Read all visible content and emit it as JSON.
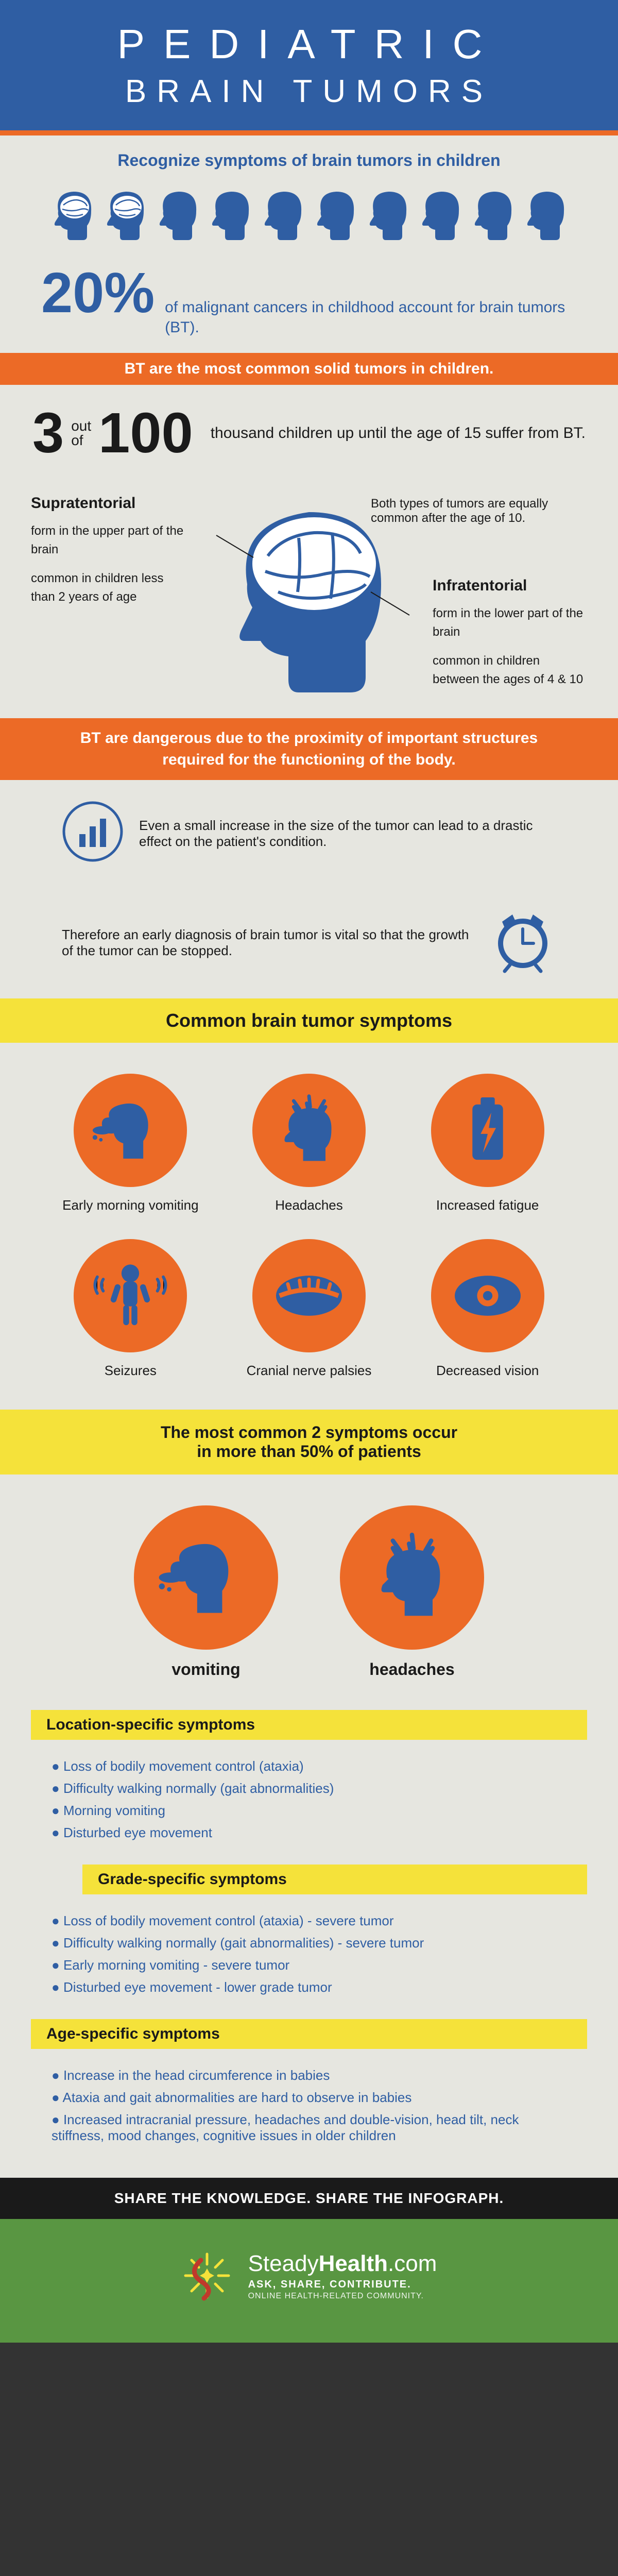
{
  "colors": {
    "blue": "#2f5ea3",
    "orange": "#ec6a26",
    "yellow": "#f5e23a",
    "bg": "#e6e6e0",
    "dark": "#1a1a1a",
    "green": "#599642"
  },
  "header": {
    "line1": "PEDIATRIC",
    "line2": "BRAIN TUMORS"
  },
  "subheader": "Recognize symptoms of brain tumors in children",
  "heads": {
    "total": 10,
    "highlighted": 2
  },
  "stat20": {
    "big": "20%",
    "text": "of malignant cancers in childhood account for brain tumors (BT)."
  },
  "bar1": "BT are the most common solid tumors in children.",
  "stat3": {
    "n1": "3",
    "of": "out\nof",
    "n2": "100",
    "text": "thousand children up until the age of 15 suffer from BT."
  },
  "brain": {
    "top_note": "Both types of tumors are equally common after the age of 10.",
    "supra": {
      "title": "Supratentorial",
      "a": "form in the upper part of the brain",
      "b": "common in children less than 2 years of age",
      "hl_a": "upper",
      "hl_b": "2 years"
    },
    "infra": {
      "title": "Infratentorial",
      "a": "form in the lower part of the brain",
      "b": "common in children between the ages of 4 & 10",
      "hl_a": "lower",
      "hl_b": "4 & 10"
    }
  },
  "bar2": "BT are dangerous due to the proximity of important structures required for the functioning of the body.",
  "info1": "Even a small increase in the size of the tumor can lead to a drastic effect on the patient's condition.",
  "info2": "Therefore an early diagnosis of brain tumor is vital so that the growth of the tumor can be stopped.",
  "band_common": "Common brain tumor symptoms",
  "symptoms": [
    {
      "label": "Early morning vomiting",
      "icon": "vomit"
    },
    {
      "label": "Headaches",
      "icon": "headache"
    },
    {
      "label": "Increased fatigue",
      "icon": "battery"
    },
    {
      "label": "Seizures",
      "icon": "seizure"
    },
    {
      "label": "Cranial nerve palsies",
      "icon": "eye-closed"
    },
    {
      "label": "Decreased vision",
      "icon": "eye-open"
    }
  ],
  "band_two": "The most common 2 symptoms occur\nin more than 50% of patients",
  "two_symptoms": [
    {
      "label": "vomiting",
      "icon": "vomit"
    },
    {
      "label": "headaches",
      "icon": "headache"
    }
  ],
  "loc": {
    "title": "Location-specific symptoms",
    "items": [
      "Loss of bodily movement control (ataxia)",
      "Difficulty walking normally (gait abnormalities)",
      "Morning vomiting",
      "Disturbed eye movement"
    ]
  },
  "grade": {
    "title": "Grade-specific symptoms",
    "items": [
      "Loss of bodily movement control (ataxia) - severe tumor",
      "Difficulty walking normally (gait abnormalities) - severe tumor",
      "Early morning vomiting - severe tumor",
      "Disturbed eye movement - lower grade tumor"
    ]
  },
  "age": {
    "title": "Age-specific symptoms",
    "items": [
      "Increase in the head circumference in babies",
      "Ataxia and gait abnormalities are hard to observe in babies",
      "Increased intracranial pressure, headaches and double-vision, head tilt, neck stiffness, mood changes, cognitive issues in older children"
    ]
  },
  "share": "SHARE THE KNOWLEDGE. SHARE THE INFOGRAPH.",
  "footer": {
    "name_a": "Steady",
    "name_b": "Health",
    "name_c": ".com",
    "tag1": "ASK, SHARE, CONTRIBUTE.",
    "tag2": "ONLINE HEALTH-RELATED COMMUNITY."
  }
}
